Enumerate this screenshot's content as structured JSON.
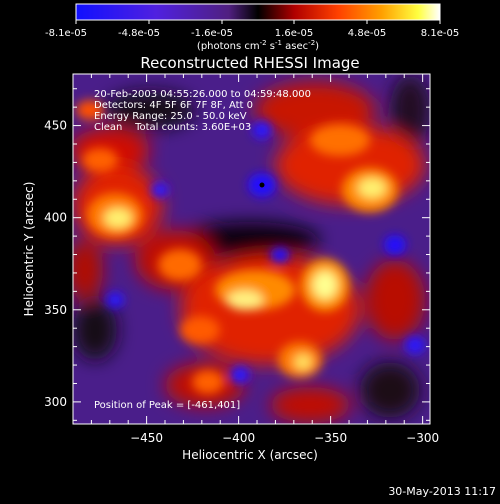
{
  "colorbar": {
    "tick_labels": [
      "-8.1e-05",
      "-4.8e-05",
      "-1.6e-05",
      "1.6e-05",
      "4.8e-05",
      "8.1e-05"
    ],
    "range": [
      -8.1e-05,
      8.1e-05
    ],
    "units_prefix": "(photons cm",
    "units_sup1": "-2",
    "units_mid": " s",
    "units_sup2": "-1",
    "units_mid2": " asec",
    "units_sup3": "-2",
    "units_suffix": ")"
  },
  "chart_data": {
    "type": "heatmap",
    "title": "Reconstructed RHESSI Image",
    "xlabel": "Heliocentric X (arcsec)",
    "ylabel": "Heliocentric Y (arcsec)",
    "xlim": [
      -490,
      -296
    ],
    "ylim": [
      288,
      478
    ],
    "x_ticks": [
      -450,
      -400,
      -350,
      -300
    ],
    "x_tick_labels": [
      "−450",
      "−400",
      "−350",
      "−300"
    ],
    "y_ticks": [
      300,
      350,
      400,
      450
    ],
    "y_tick_labels": [
      "300",
      "350",
      "400",
      "450"
    ],
    "colormap": "RHESSI color table: blue (negative) → purple → black → red → orange → yellow → white (positive)",
    "peak_position": [
      -461,
      401
    ],
    "annotations": [
      "20-Feb-2003 04:55:26.000 to 04:59:48.000",
      "Detectors: 4F 5F 6F 7F 8F, Att 0",
      "Energy Range: 25.0 - 50.0 keV",
      "Clean    Total counts: 3.60E+03"
    ],
    "peak_label": "Position of Peak = [-461,401]"
  },
  "footer": {
    "date": "30-May-2013 11:17"
  },
  "colors": {
    "background": "#000000",
    "foreground": "#ffffff"
  }
}
